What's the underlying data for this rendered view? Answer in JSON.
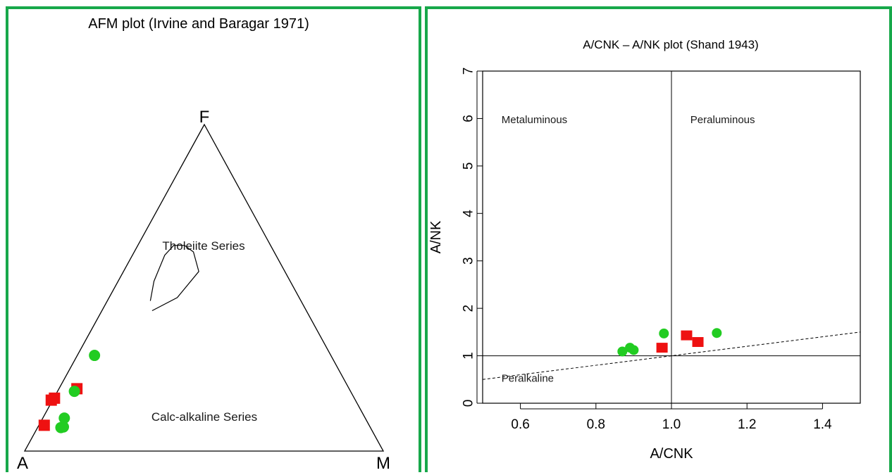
{
  "frame_color": "#17a84a",
  "chart_data": [
    {
      "type": "scatter",
      "subtype": "ternary",
      "title": "AFM plot (Irvine and Baragar 1971)",
      "vertices": {
        "top": "F",
        "left": "A",
        "right": "M"
      },
      "field_labels": {
        "upper": "Tholeiite Series",
        "lower": "Calc-alkaline Series"
      },
      "boundary_curve_AFM": [
        [
          0.43,
          0.43,
          0.14
        ],
        [
          0.34,
          0.47,
          0.19
        ],
        [
          0.24,
          0.55,
          0.21
        ],
        [
          0.225,
          0.61,
          0.165
        ],
        [
          0.24,
          0.63,
          0.13
        ],
        [
          0.27,
          0.63,
          0.1
        ],
        [
          0.31,
          0.6,
          0.09
        ],
        [
          0.38,
          0.52,
          0.1
        ],
        [
          0.42,
          0.46,
          0.12
        ]
      ],
      "series": [
        {
          "marker": "square",
          "color": "#ee1111",
          "points": [
            [
              0.836,
              0.162,
              0.002
            ],
            [
              0.759,
              0.191,
              0.05
            ],
            [
              0.906,
              0.079,
              0.015
            ],
            [
              0.848,
              0.156,
              -0.004
            ]
          ]
        },
        {
          "marker": "circle",
          "color": "#22cc22",
          "points": [
            [
              0.863,
              0.072,
              0.065
            ],
            [
              0.855,
              0.074,
              0.071
            ],
            [
              0.839,
              0.101,
              0.06
            ],
            [
              0.77,
              0.183,
              0.047
            ],
            [
              0.659,
              0.293,
              0.048
            ]
          ]
        }
      ]
    },
    {
      "type": "scatter",
      "title": "A/CNK – A/NK plot (Shand 1943)",
      "xlabel": "A/CNK",
      "ylabel": "A/NK",
      "xlim": [
        0.5,
        1.5
      ],
      "ylim": [
        0,
        7
      ],
      "xticks": [
        0.6,
        0.8,
        1.0,
        1.2,
        1.4
      ],
      "xtick_labels": [
        "0.6",
        "0.8",
        "1.0",
        "1.2",
        "1.4"
      ],
      "yticks": [
        0,
        1,
        2,
        3,
        4,
        5,
        6,
        7
      ],
      "ytick_labels": [
        "0",
        "1",
        "2",
        "3",
        "4",
        "5",
        "6",
        "7"
      ],
      "field_labels": {
        "metaluminous": "Metaluminous",
        "peraluminous": "Peraluminous",
        "peralkaline": "Peralkaline"
      },
      "field_label_positions": {
        "metaluminous": [
          0.55,
          5.9
        ],
        "peraluminous": [
          1.05,
          5.9
        ],
        "peralkaline": [
          0.55,
          0.45
        ]
      },
      "reference_lines": {
        "vertical_x": 1.0,
        "horizontal_y": 1.0,
        "dashed_from": [
          0.5,
          0.5
        ],
        "dashed_to": [
          1.5,
          1.5
        ]
      },
      "series": [
        {
          "marker": "square",
          "color": "#ee1111",
          "points": [
            [
              0.975,
              1.17
            ],
            [
              1.04,
              1.43
            ],
            [
              1.07,
              1.29
            ]
          ]
        },
        {
          "marker": "circle",
          "color": "#22cc22",
          "points": [
            [
              0.87,
              1.09
            ],
            [
              0.89,
              1.17
            ],
            [
              0.9,
              1.12
            ],
            [
              0.98,
              1.47
            ],
            [
              1.12,
              1.48
            ]
          ]
        }
      ]
    }
  ]
}
